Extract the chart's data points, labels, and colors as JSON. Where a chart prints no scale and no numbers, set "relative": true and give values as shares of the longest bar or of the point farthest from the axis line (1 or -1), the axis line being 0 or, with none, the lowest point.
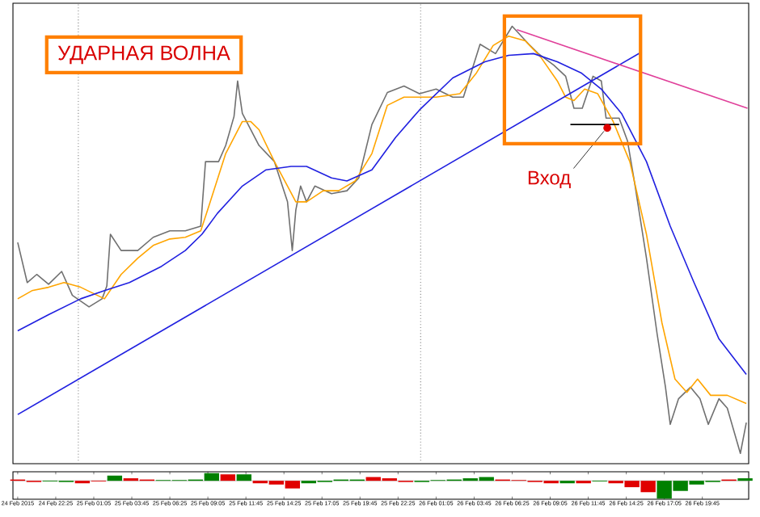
{
  "chart_data": [
    {
      "type": "line",
      "relative": true,
      "tick_labels": false,
      "xlim": [
        "2015-02-24T19:25",
        "2015-02-26T23:00"
      ],
      "annotations": [
        "УДАРНАЯ ВОЛНА",
        {
          "text": "Вход",
          "x": "2015-02-26T13:05",
          "y": 0.762
        }
      ],
      "ref_lines": [
        {
          "axis": "x",
          "value": "2015-02-25T00:00",
          "line_style": "dotted",
          "color": "#808080"
        },
        {
          "axis": "x",
          "value": "2015-02-26T00:00",
          "line_style": "dotted",
          "color": "#808080"
        }
      ],
      "series": [
        {
          "color": "#707070",
          "x": [
            "2015-02-24T19:45",
            "2015-02-24T20:25",
            "2015-02-24T21:05",
            "2015-02-24T21:55",
            "2015-02-24T22:50",
            "2015-02-24T23:35",
            "2015-02-25T00:45",
            "2015-02-25T01:40",
            "2015-02-25T02:00",
            "2015-02-25T02:15",
            "2015-02-25T03:00",
            "2015-02-25T04:10",
            "2015-02-25T05:15",
            "2015-02-25T06:25",
            "2015-02-25T07:30",
            "2015-02-25T08:35",
            "2015-02-25T08:55",
            "2015-02-25T09:50",
            "2015-02-25T10:20",
            "2015-02-25T10:55",
            "2015-02-25T11:10",
            "2015-02-25T11:30",
            "2015-02-25T12:40",
            "2015-02-25T13:45",
            "2015-02-25T14:40",
            "2015-02-25T15:00",
            "2015-02-25T15:15",
            "2015-02-25T15:35",
            "2015-02-25T16:00",
            "2015-02-25T16:35",
            "2015-02-25T17:45",
            "2015-02-25T18:50",
            "2015-02-25T19:40",
            "2015-02-25T20:35",
            "2015-02-25T21:40",
            "2015-02-25T22:50",
            "2015-02-25T23:55",
            "2015-02-26T01:05",
            "2015-02-26T02:15",
            "2015-02-26T03:00",
            "2015-02-26T04:10",
            "2015-02-26T05:15",
            "2015-02-26T06:25",
            "2015-02-26T07:35",
            "2015-02-26T08:15",
            "2015-02-26T09:20",
            "2015-02-26T10:10",
            "2015-02-26T10:45",
            "2015-02-26T11:20",
            "2015-02-26T12:05",
            "2015-02-26T12:40",
            "2015-02-26T13:00",
            "2015-02-26T13:55",
            "2015-02-26T14:30",
            "2015-02-26T15:00",
            "2015-02-26T15:50",
            "2015-02-26T16:35",
            "2015-02-26T17:10",
            "2015-02-26T17:30",
            "2015-02-26T18:05",
            "2015-02-26T18:55",
            "2015-02-26T19:35",
            "2015-02-26T20:10",
            "2015-02-26T20:55",
            "2015-02-26T21:30",
            "2015-02-26T22:25",
            "2015-02-26T22:50"
          ],
          "values": [
            0.494,
            0.4,
            0.419,
            0.396,
            0.426,
            0.37,
            0.343,
            0.362,
            0.392,
            0.513,
            0.475,
            0.475,
            0.506,
            0.521,
            0.521,
            0.532,
            0.683,
            0.683,
            0.721,
            0.789,
            0.872,
            0.796,
            0.721,
            0.683,
            0.589,
            0.475,
            0.57,
            0.626,
            0.589,
            0.626,
            0.608,
            0.615,
            0.645,
            0.77,
            0.845,
            0.86,
            0.842,
            0.853,
            0.834,
            0.834,
            0.958,
            0.936,
            1.0,
            0.958,
            0.936,
            0.909,
            0.883,
            0.808,
            0.808,
            0.883,
            0.872,
            0.785,
            0.785,
            0.732,
            0.634,
            0.457,
            0.279,
            0.155,
            0.068,
            0.128,
            0.155,
            0.128,
            0.068,
            0.128,
            0.106,
            0.0,
            0.072
          ]
        },
        {
          "color": "#ffa500",
          "x": [
            "2015-02-24T19:45",
            "2015-02-24T20:45",
            "2015-02-24T21:55",
            "2015-02-24T23:00",
            "2015-02-25T00:10",
            "2015-02-25T01:20",
            "2015-02-25T01:50",
            "2015-02-25T03:00",
            "2015-02-25T04:10",
            "2015-02-25T05:15",
            "2015-02-25T06:25",
            "2015-02-25T07:30",
            "2015-02-25T08:35",
            "2015-02-25T09:15",
            "2015-02-25T10:20",
            "2015-02-25T11:30",
            "2015-02-25T12:05",
            "2015-02-25T12:40",
            "2015-02-25T13:45",
            "2015-02-25T14:40",
            "2015-02-25T15:15",
            "2015-02-25T16:00",
            "2015-02-25T17:10",
            "2015-02-25T18:15",
            "2015-02-25T19:25",
            "2015-02-25T20:35",
            "2015-02-25T21:40",
            "2015-02-25T22:50",
            "2015-02-26T01:05",
            "2015-02-26T02:45",
            "2015-02-26T03:55",
            "2015-02-26T05:05",
            "2015-02-26T06:10",
            "2015-02-26T07:20",
            "2015-02-26T08:25",
            "2015-02-26T09:35",
            "2015-02-26T10:10",
            "2015-02-26T10:45",
            "2015-02-26T11:30",
            "2015-02-26T12:25",
            "2015-02-26T13:30",
            "2015-02-26T14:40",
            "2015-02-26T15:50",
            "2015-02-26T16:55",
            "2015-02-26T17:50",
            "2015-02-26T18:40",
            "2015-02-26T19:25",
            "2015-02-26T20:20",
            "2015-02-26T21:30",
            "2015-02-26T22:50"
          ],
          "values": [
            0.362,
            0.381,
            0.389,
            0.4,
            0.389,
            0.37,
            0.362,
            0.419,
            0.457,
            0.487,
            0.502,
            0.506,
            0.521,
            0.589,
            0.702,
            0.777,
            0.777,
            0.758,
            0.683,
            0.626,
            0.589,
            0.589,
            0.615,
            0.615,
            0.638,
            0.702,
            0.815,
            0.834,
            0.834,
            0.842,
            0.891,
            0.955,
            0.977,
            0.966,
            0.928,
            0.872,
            0.834,
            0.826,
            0.853,
            0.842,
            0.777,
            0.683,
            0.513,
            0.306,
            0.174,
            0.143,
            0.174,
            0.136,
            0.136,
            0.117
          ]
        },
        {
          "color": "#2020e0",
          "x": [
            "2015-02-24T19:45",
            "2015-02-24T21:55",
            "2015-02-25T00:10",
            "2015-02-25T01:50",
            "2015-02-25T03:35",
            "2015-02-25T05:50",
            "2015-02-25T07:30",
            "2015-02-25T08:40",
            "2015-02-25T09:45",
            "2015-02-25T11:30",
            "2015-02-25T13:10",
            "2015-02-25T14:55",
            "2015-02-25T16:00",
            "2015-02-25T17:45",
            "2015-02-25T18:50",
            "2015-02-25T20:35",
            "2015-02-25T22:15",
            "2015-02-25T23:55",
            "2015-02-26T02:15",
            "2015-02-26T04:30",
            "2015-02-26T06:10",
            "2015-02-26T07:55",
            "2015-02-26T09:35",
            "2015-02-26T11:15",
            "2015-02-26T12:40",
            "2015-02-26T14:05",
            "2015-02-26T15:50",
            "2015-02-26T17:30",
            "2015-02-26T19:10",
            "2015-02-26T20:55",
            "2015-02-26T22:50"
          ],
          "values": [
            0.287,
            0.325,
            0.362,
            0.381,
            0.4,
            0.438,
            0.475,
            0.513,
            0.562,
            0.626,
            0.664,
            0.672,
            0.672,
            0.645,
            0.638,
            0.664,
            0.74,
            0.804,
            0.879,
            0.917,
            0.932,
            0.936,
            0.917,
            0.891,
            0.853,
            0.796,
            0.683,
            0.532,
            0.4,
            0.268,
            0.185
          ]
        },
        {
          "color": "#2020e0",
          "x": [
            "2015-02-24T19:45",
            "2015-02-26T15:30"
          ],
          "values": [
            0.091,
            0.94
          ]
        },
        {
          "color": "#e0409a",
          "x": [
            "2015-02-26T06:45",
            "2015-02-26T22:55"
          ],
          "values": [
            0.992,
            0.808
          ]
        },
        {
          "color": "#000000",
          "x": [
            "2015-02-26T10:30",
            "2015-02-26T13:55"
          ],
          "values": [
            0.77,
            0.77
          ]
        },
        {
          "type": "scatter",
          "marker": "circle",
          "color": "#e00000",
          "x": [
            "2015-02-26T13:05"
          ],
          "values": [
            0.762
          ]
        }
      ]
    },
    {
      "type": "bar",
      "relative": true,
      "tick_labels": "x",
      "xlim": [
        "2015-02-24T19:25",
        "2015-02-26T23:00"
      ],
      "xticks": [
        {
          "value": "2015-02-24T19:45",
          "label": "24 Feb 2015"
        },
        {
          "value": "2015-02-24T22:25",
          "label": "24 Feb 22:25"
        },
        {
          "value": "2015-02-25T01:05",
          "label": "25 Feb 01:05"
        },
        {
          "value": "2015-02-25T03:45",
          "label": "25 Feb 03:45"
        },
        {
          "value": "2015-02-25T06:25",
          "label": "25 Feb 06:25"
        },
        {
          "value": "2015-02-25T09:05",
          "label": "25 Feb 09:05"
        },
        {
          "value": "2015-02-25T11:45",
          "label": "25 Feb 11:45"
        },
        {
          "value": "2015-02-25T14:25",
          "label": "25 Feb 14:25"
        },
        {
          "value": "2015-02-25T17:05",
          "label": "25 Feb 17:05"
        },
        {
          "value": "2015-02-25T19:45",
          "label": "25 Feb 19:45"
        },
        {
          "value": "2015-02-25T22:25",
          "label": "25 Feb 22:25"
        },
        {
          "value": "2015-02-26T01:05",
          "label": "26 Feb 01:05"
        },
        {
          "value": "2015-02-26T03:45",
          "label": "26 Feb 03:45"
        },
        {
          "value": "2015-02-26T06:25",
          "label": "26 Feb 06:25"
        },
        {
          "value": "2015-02-26T09:05",
          "label": "26 Feb 09:05"
        },
        {
          "value": "2015-02-26T11:45",
          "label": "26 Feb 11:45"
        },
        {
          "value": "2015-02-26T14:25",
          "label": "26 Feb 14:25"
        },
        {
          "value": "2015-02-26T17:05",
          "label": "26 Feb 17:05"
        },
        {
          "value": "2015-02-26T19:45",
          "label": "26 Feb 19:45"
        }
      ],
      "x": [
        "2015-02-24T19:45",
        "2015-02-24T20:53",
        "2015-02-24T22:01",
        "2015-02-24T23:09",
        "2015-02-25T00:17",
        "2015-02-25T01:25",
        "2015-02-25T02:33",
        "2015-02-25T03:41",
        "2015-02-25T04:49",
        "2015-02-25T05:57",
        "2015-02-25T07:05",
        "2015-02-25T08:13",
        "2015-02-25T09:21",
        "2015-02-25T10:29",
        "2015-02-25T11:37",
        "2015-02-25T12:45",
        "2015-02-25T13:53",
        "2015-02-25T15:01",
        "2015-02-25T16:09",
        "2015-02-25T17:17",
        "2015-02-25T18:25",
        "2015-02-25T19:33",
        "2015-02-25T20:41",
        "2015-02-25T21:49",
        "2015-02-25T22:57",
        "2015-02-26T00:05",
        "2015-02-26T01:13",
        "2015-02-26T02:21",
        "2015-02-26T03:29",
        "2015-02-26T04:37",
        "2015-02-26T05:45",
        "2015-02-26T06:53",
        "2015-02-26T08:01",
        "2015-02-26T09:09",
        "2015-02-26T10:17",
        "2015-02-26T11:25",
        "2015-02-26T12:33",
        "2015-02-26T13:41",
        "2015-02-26T14:49",
        "2015-02-26T15:57",
        "2015-02-26T17:05",
        "2015-02-26T18:13",
        "2015-02-26T19:21",
        "2015-02-26T20:29",
        "2015-02-26T21:37",
        "2015-02-26T22:45"
      ],
      "values": [
        0.07,
        -0.07,
        -0.04,
        -0.07,
        -0.14,
        -0.04,
        0.29,
        0.14,
        0.07,
        0.04,
        0.04,
        0.07,
        0.43,
        0.36,
        0.36,
        -0.14,
        -0.21,
        -0.43,
        -0.14,
        -0.07,
        0.07,
        0.07,
        0.21,
        0.14,
        -0.07,
        -0.07,
        0.04,
        0.07,
        0.14,
        0.21,
        0.07,
        0.04,
        -0.07,
        -0.14,
        -0.14,
        -0.14,
        -0.04,
        -0.14,
        -0.36,
        -0.64,
        -1,
        -0.57,
        -0.21,
        -0.07,
        0.07,
        0.14
      ],
      "colors": [
        "#e00000",
        "#e00000",
        "#008000",
        "#008000",
        "#e00000",
        "#e00000",
        "#008000",
        "#e00000",
        "#e00000",
        "#008000",
        "#008000",
        "#008000",
        "#008000",
        "#e00000",
        "#008000",
        "#e00000",
        "#e00000",
        "#e00000",
        "#008000",
        "#008000",
        "#008000",
        "#008000",
        "#e00000",
        "#e00000",
        "#e00000",
        "#008000",
        "#008000",
        "#008000",
        "#008000",
        "#008000",
        "#e00000",
        "#e00000",
        "#e00000",
        "#e00000",
        "#008000",
        "#e00000",
        "#008000",
        "#e00000",
        "#e00000",
        "#e00000",
        "#008000",
        "#008000",
        "#008000",
        "#008000",
        "#e00000",
        "#008000"
      ]
    }
  ]
}
